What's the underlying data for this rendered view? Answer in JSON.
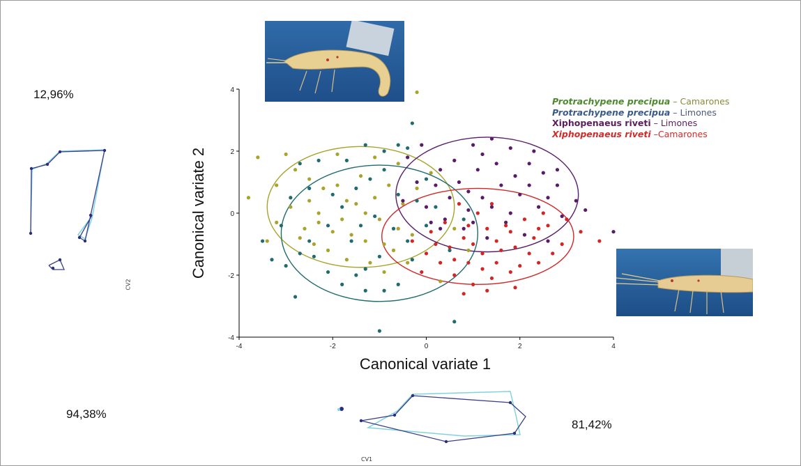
{
  "percentages": {
    "top_left": "12,96%",
    "bottom_left": "94,38%",
    "bottom_right": "81,42%"
  },
  "small_labels": {
    "cv1": "CV1",
    "cv2": "CV2"
  },
  "legend": [
    {
      "species": "Protrachypene precipua",
      "sep": " – ",
      "site": "Camarones",
      "color": "#4d8a2e",
      "site_color": "#8a8a3a",
      "species_style": "bold-italic"
    },
    {
      "species": "Protrachypene precipua",
      "sep": " – ",
      "site": "Limones",
      "color": "#3a5a8c",
      "site_color": "#4a5a7a",
      "species_style": "bold-italic"
    },
    {
      "species": "Xiphopenaeus riveti",
      "sep": " – ",
      "site": "Limones",
      "color": "#5a1f5e",
      "site_color": "#5a1f5e",
      "species_style": "bold"
    },
    {
      "species": "Xiphopenaeus  riveti",
      "sep": " –",
      "site": "Camarones",
      "color": "#d42a2a",
      "site_color": "#d42a2a",
      "species_style": "bold-italic"
    }
  ],
  "chart_data": {
    "type": "scatter",
    "xlabel": "Canonical variate 1",
    "ylabel": "Canonical variate 2",
    "xlim": [
      -4,
      4
    ],
    "ylim": [
      -4,
      4
    ],
    "xticks": [
      -4,
      -2,
      0,
      2,
      4
    ],
    "yticks": [
      -4,
      -2,
      0,
      2,
      4
    ],
    "grid": false,
    "legend_placement": "top-right",
    "series": [
      {
        "name": "Protrachypene precipua – Camarones",
        "color": "#a8a32a",
        "ellipse": {
          "cx": -1.4,
          "cy": 0.2,
          "rx": 2.0,
          "ry": 1.95
        },
        "points": [
          [
            -3.0,
            1.9
          ],
          [
            -2.8,
            1.4
          ],
          [
            -3.2,
            0.9
          ],
          [
            -3.6,
            1.8
          ],
          [
            -3.8,
            0.5
          ],
          [
            -2.5,
            0.4
          ],
          [
            -2.2,
            0.8
          ],
          [
            -1.9,
            0.9
          ],
          [
            -1.7,
            0.4
          ],
          [
            -2.3,
            0.0
          ],
          [
            -2.9,
            0.2
          ],
          [
            -3.2,
            -0.3
          ],
          [
            -2.6,
            -0.5
          ],
          [
            -2.0,
            -0.6
          ],
          [
            -1.6,
            -0.7
          ],
          [
            -1.3,
            -0.9
          ],
          [
            -0.9,
            -1.0
          ],
          [
            -2.4,
            -1.0
          ],
          [
            -2.7,
            -0.8
          ],
          [
            -2.1,
            -1.2
          ],
          [
            -1.7,
            -1.5
          ],
          [
            -1.2,
            -1.6
          ],
          [
            -0.7,
            -1.2
          ],
          [
            -0.3,
            -0.7
          ],
          [
            -1.5,
            0.3
          ],
          [
            -1.1,
            0.5
          ],
          [
            -0.8,
            0.9
          ],
          [
            -0.5,
            0.3
          ],
          [
            -0.2,
            0.8
          ],
          [
            0.1,
            1.3
          ],
          [
            -1.4,
            1.2
          ],
          [
            -1.9,
            1.9
          ],
          [
            -1.1,
            1.8
          ],
          [
            -0.6,
            1.6
          ],
          [
            0.6,
            -0.5
          ],
          [
            0.9,
            -1.2
          ],
          [
            0.3,
            -1.6
          ],
          [
            -0.2,
            3.9
          ],
          [
            -2.3,
            -0.3
          ],
          [
            -1.8,
            -0.2
          ],
          [
            -1.0,
            -0.2
          ],
          [
            -0.6,
            -0.5
          ],
          [
            -2.5,
            1.1
          ],
          [
            -3.4,
            -0.9
          ],
          [
            -0.4,
            -1.6
          ],
          [
            0.3,
            -2.2
          ],
          [
            -0.9,
            -1.9
          ],
          [
            -1.3,
            0.0
          ]
        ]
      },
      {
        "name": "Protrachypene precipua – Limones",
        "color": "#1f6b6e",
        "ellipse": {
          "cx": -1.0,
          "cy": -0.65,
          "rx": 2.1,
          "ry": 2.2
        },
        "points": [
          [
            -3.5,
            -0.9
          ],
          [
            -3.3,
            -1.5
          ],
          [
            -3.0,
            -1.7
          ],
          [
            -2.7,
            -1.3
          ],
          [
            -2.4,
            -1.4
          ],
          [
            -2.1,
            -1.9
          ],
          [
            -1.8,
            -2.3
          ],
          [
            -2.8,
            -2.7
          ],
          [
            -1.5,
            -2.0
          ],
          [
            -1.3,
            -1.8
          ],
          [
            -1.0,
            -1.4
          ],
          [
            -0.7,
            -0.5
          ],
          [
            -0.4,
            -0.9
          ],
          [
            -0.6,
            0.6
          ],
          [
            -0.9,
            1.4
          ],
          [
            -1.2,
            1.1
          ],
          [
            -1.5,
            0.8
          ],
          [
            -1.8,
            0.2
          ],
          [
            -2.1,
            -0.4
          ],
          [
            -2.5,
            -0.9
          ],
          [
            -1.6,
            -0.9
          ],
          [
            -1.1,
            -0.1
          ],
          [
            -0.2,
            0.4
          ],
          [
            0.0,
            1.1
          ],
          [
            -0.4,
            2.1
          ],
          [
            -0.6,
            2.2
          ],
          [
            -0.9,
            2.0
          ],
          [
            -1.3,
            2.2
          ],
          [
            -1.7,
            1.7
          ],
          [
            -2.3,
            1.7
          ],
          [
            -2.7,
            1.6
          ],
          [
            -2.5,
            0.8
          ],
          [
            -2.9,
            0.5
          ],
          [
            -3.1,
            -0.4
          ],
          [
            -0.3,
            -1.5
          ],
          [
            -0.6,
            -2.3
          ],
          [
            -0.9,
            -2.5
          ],
          [
            -1.3,
            -2.5
          ],
          [
            -1.0,
            -3.8
          ],
          [
            0.6,
            -3.5
          ],
          [
            0.5,
            -1.2
          ],
          [
            0.8,
            -0.2
          ],
          [
            0.2,
            0.2
          ],
          [
            -2.0,
            0.6
          ],
          [
            -1.4,
            -0.4
          ],
          [
            -0.3,
            2.9
          ],
          [
            0.0,
            -0.4
          ]
        ]
      },
      {
        "name": "Xiphopenaeus riveti – Limones",
        "color": "#5a1a6a",
        "ellipse": {
          "cx": 1.3,
          "cy": 0.6,
          "rx": 1.95,
          "ry": 1.85
        },
        "points": [
          [
            0.3,
            1.4
          ],
          [
            0.7,
            1.0
          ],
          [
            1.0,
            2.2
          ],
          [
            1.4,
            2.4
          ],
          [
            1.8,
            2.1
          ],
          [
            2.2,
            1.6
          ],
          [
            2.5,
            1.3
          ],
          [
            2.8,
            0.9
          ],
          [
            3.2,
            0.4
          ],
          [
            2.9,
            -0.1
          ],
          [
            2.4,
            0.2
          ],
          [
            2.0,
            0.6
          ],
          [
            1.6,
            0.9
          ],
          [
            1.2,
            0.5
          ],
          [
            0.9,
            0.1
          ],
          [
            0.5,
            0.5
          ],
          [
            0.2,
            0.9
          ],
          [
            -0.2,
            1.0
          ],
          [
            -0.5,
            0.4
          ],
          [
            0.0,
            0.2
          ],
          [
            0.4,
            -0.2
          ],
          [
            0.8,
            -0.5
          ],
          [
            1.3,
            -0.8
          ],
          [
            1.7,
            -0.3
          ],
          [
            2.1,
            -0.7
          ],
          [
            2.6,
            -0.9
          ],
          [
            1.1,
            1.4
          ],
          [
            1.5,
            1.6
          ],
          [
            1.9,
            1.2
          ],
          [
            2.3,
            2.0
          ],
          [
            2.6,
            0.5
          ],
          [
            3.4,
            0.1
          ],
          [
            4.0,
            -0.6
          ],
          [
            -0.1,
            2.2
          ],
          [
            0.9,
            0.7
          ],
          [
            1.4,
            0.2
          ],
          [
            1.8,
            0.0
          ],
          [
            2.2,
            0.9
          ],
          [
            0.6,
            1.7
          ],
          [
            0.3,
            -0.5
          ],
          [
            1.0,
            -0.3
          ],
          [
            2.8,
            1.4
          ],
          [
            0.1,
            -0.3
          ],
          [
            -0.4,
            1.8
          ],
          [
            1.2,
            1.9
          ]
        ]
      },
      {
        "name": "Xiphopenaeus riveti – Camarones",
        "color": "#d42525",
        "ellipse": {
          "cx": 1.1,
          "cy": -0.75,
          "rx": 2.05,
          "ry": 1.55
        },
        "points": [
          [
            -0.3,
            -0.9
          ],
          [
            0.1,
            -0.6
          ],
          [
            0.5,
            -1.1
          ],
          [
            0.8,
            -0.8
          ],
          [
            1.2,
            -1.3
          ],
          [
            1.5,
            -0.9
          ],
          [
            1.9,
            -1.1
          ],
          [
            2.3,
            -0.8
          ],
          [
            2.6,
            -0.4
          ],
          [
            2.9,
            -1.0
          ],
          [
            3.7,
            -0.9
          ],
          [
            3.0,
            -0.2
          ],
          [
            2.4,
            -1.6
          ],
          [
            1.8,
            -1.9
          ],
          [
            1.4,
            -2.1
          ],
          [
            1.0,
            -2.3
          ],
          [
            0.6,
            -2.0
          ],
          [
            0.3,
            -1.6
          ],
          [
            0.0,
            -1.3
          ],
          [
            0.9,
            -0.4
          ],
          [
            1.3,
            -0.5
          ],
          [
            1.7,
            -0.4
          ],
          [
            2.1,
            -0.2
          ],
          [
            0.7,
            0.3
          ],
          [
            1.1,
            0.0
          ],
          [
            1.5,
            -1.6
          ],
          [
            1.9,
            -2.4
          ],
          [
            2.2,
            -1.3
          ],
          [
            0.4,
            -0.3
          ],
          [
            -0.1,
            -1.9
          ],
          [
            0.8,
            -2.6
          ],
          [
            1.3,
            -2.5
          ],
          [
            1.6,
            -1.2
          ],
          [
            2.7,
            -1.3
          ],
          [
            1.0,
            -1.0
          ],
          [
            0.2,
            -1.0
          ],
          [
            0.6,
            -1.5
          ],
          [
            2.0,
            -1.7
          ],
          [
            1.4,
            0.3
          ],
          [
            2.5,
            0.0
          ],
          [
            3.3,
            -0.6
          ],
          [
            1.2,
            -1.8
          ],
          [
            0.9,
            -1.6
          ],
          [
            1.8,
            -0.6
          ],
          [
            2.4,
            -0.5
          ]
        ]
      }
    ]
  }
}
